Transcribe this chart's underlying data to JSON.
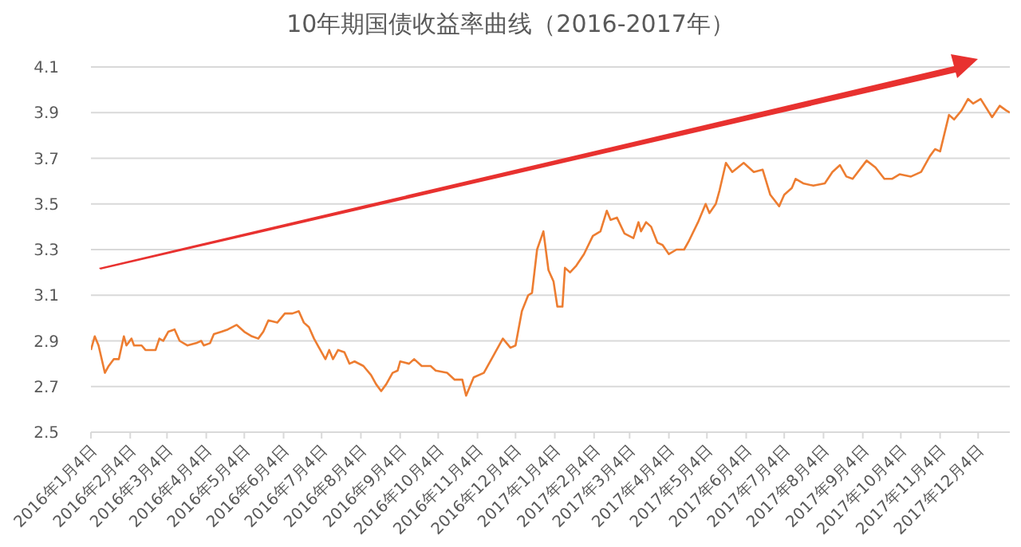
{
  "chart_data": {
    "type": "line",
    "title": "10年期国债收益率曲线（2016-2017年）",
    "x": [
      "2016-01-04",
      "2016-01-07",
      "2016-01-10",
      "2016-01-15",
      "2016-01-18",
      "2016-01-22",
      "2016-01-26",
      "2016-01-30",
      "2016-02-01",
      "2016-02-05",
      "2016-02-07",
      "2016-02-13",
      "2016-02-16",
      "2016-02-24",
      "2016-02-27",
      "2016-03-01",
      "2016-03-05",
      "2016-03-10",
      "2016-03-14",
      "2016-03-20",
      "2016-03-27",
      "2016-03-31",
      "2016-04-02",
      "2016-04-07",
      "2016-04-10",
      "2016-04-16",
      "2016-04-21",
      "2016-04-28",
      "2016-05-04",
      "2016-05-10",
      "2016-05-15",
      "2016-05-19",
      "2016-05-23",
      "2016-05-30",
      "2016-06-05",
      "2016-06-11",
      "2016-06-16",
      "2016-06-20",
      "2016-06-24",
      "2016-06-28",
      "2016-07-02",
      "2016-07-07",
      "2016-07-10",
      "2016-07-13",
      "2016-07-17",
      "2016-07-22",
      "2016-07-26",
      "2016-07-30",
      "2016-08-06",
      "2016-08-12",
      "2016-08-16",
      "2016-08-20",
      "2016-08-24",
      "2016-08-29",
      "2016-09-02",
      "2016-09-04",
      "2016-09-11",
      "2016-09-15",
      "2016-09-21",
      "2016-09-28",
      "2016-10-02",
      "2016-10-11",
      "2016-10-17",
      "2016-10-23",
      "2016-10-26",
      "2016-11-01",
      "2016-11-09",
      "2016-11-16",
      "2016-11-24",
      "2016-11-30",
      "2016-12-04",
      "2016-12-09",
      "2016-12-14",
      "2016-12-17",
      "2016-12-21",
      "2016-12-26",
      "2016-12-30",
      "2017-01-03",
      "2017-01-06",
      "2017-01-10",
      "2017-01-12",
      "2017-01-16",
      "2017-01-21",
      "2017-01-27",
      "2017-02-03",
      "2017-02-09",
      "2017-02-14",
      "2017-02-17",
      "2017-02-22",
      "2017-02-28",
      "2017-03-07",
      "2017-03-11",
      "2017-03-13",
      "2017-03-17",
      "2017-03-21",
      "2017-03-26",
      "2017-03-30",
      "2017-04-04",
      "2017-04-10",
      "2017-04-16",
      "2017-04-20",
      "2017-04-27",
      "2017-05-03",
      "2017-05-06",
      "2017-05-11",
      "2017-05-14",
      "2017-05-19",
      "2017-05-24",
      "2017-06-02",
      "2017-06-10",
      "2017-06-17",
      "2017-06-23",
      "2017-06-30",
      "2017-07-04",
      "2017-07-10",
      "2017-07-13",
      "2017-07-19",
      "2017-07-27",
      "2017-08-05",
      "2017-08-11",
      "2017-08-17",
      "2017-08-22",
      "2017-08-27",
      "2017-09-07",
      "2017-09-14",
      "2017-09-21",
      "2017-09-27",
      "2017-10-03",
      "2017-10-12",
      "2017-10-20",
      "2017-10-27",
      "2017-10-31",
      "2017-11-04",
      "2017-11-11",
      "2017-11-15",
      "2017-11-21",
      "2017-11-26",
      "2017-11-30",
      "2017-12-06",
      "2017-12-15",
      "2017-12-21",
      "2017-12-26",
      "2017-12-29"
    ],
    "series": [
      {
        "color": "#ed7d31",
        "values": [
          2.86,
          2.92,
          2.88,
          2.76,
          2.79,
          2.82,
          2.82,
          2.92,
          2.88,
          2.91,
          2.88,
          2.88,
          2.86,
          2.86,
          2.91,
          2.9,
          2.94,
          2.95,
          2.9,
          2.88,
          2.89,
          2.9,
          2.88,
          2.89,
          2.93,
          2.94,
          2.95,
          2.97,
          2.94,
          2.92,
          2.91,
          2.94,
          2.99,
          2.98,
          3.02,
          3.02,
          3.03,
          2.98,
          2.96,
          2.91,
          2.87,
          2.82,
          2.86,
          2.82,
          2.86,
          2.85,
          2.8,
          2.81,
          2.79,
          2.75,
          2.71,
          2.68,
          2.71,
          2.76,
          2.77,
          2.81,
          2.8,
          2.82,
          2.79,
          2.79,
          2.77,
          2.76,
          2.73,
          2.73,
          2.66,
          2.74,
          2.76,
          2.83,
          2.91,
          2.87,
          2.88,
          3.03,
          3.1,
          3.11,
          3.3,
          3.38,
          3.21,
          3.16,
          3.05,
          3.05,
          3.22,
          3.2,
          3.23,
          3.28,
          3.36,
          3.38,
          3.47,
          3.43,
          3.44,
          3.37,
          3.35,
          3.42,
          3.38,
          3.42,
          3.4,
          3.33,
          3.32,
          3.28,
          3.3,
          3.3,
          3.34,
          3.42,
          3.5,
          3.46,
          3.5,
          3.56,
          3.68,
          3.64,
          3.68,
          3.64,
          3.65,
          3.54,
          3.49,
          3.54,
          3.57,
          3.61,
          3.59,
          3.58,
          3.59,
          3.64,
          3.67,
          3.62,
          3.61,
          3.69,
          3.66,
          3.61,
          3.61,
          3.63,
          3.62,
          3.64,
          3.71,
          3.74,
          3.73,
          3.89,
          3.87,
          3.91,
          3.96,
          3.94,
          3.96,
          3.88,
          3.93,
          3.91,
          3.9
        ]
      }
    ],
    "xlim": [
      "2016-01-04",
      "2017-12-29"
    ],
    "xticks": [
      {
        "value": "2016-01-04",
        "label": "2016年1月4日"
      },
      {
        "value": "2016-02-04",
        "label": "2016年2月4日"
      },
      {
        "value": "2016-03-04",
        "label": "2016年3月4日"
      },
      {
        "value": "2016-04-04",
        "label": "2016年4月4日"
      },
      {
        "value": "2016-05-04",
        "label": "2016年5月4日"
      },
      {
        "value": "2016-06-04",
        "label": "2016年6月4日"
      },
      {
        "value": "2016-07-04",
        "label": "2016年7月4日"
      },
      {
        "value": "2016-08-04",
        "label": "2016年8月4日"
      },
      {
        "value": "2016-09-04",
        "label": "2016年9月4日"
      },
      {
        "value": "2016-10-04",
        "label": "2016年10月4日"
      },
      {
        "value": "2016-11-04",
        "label": "2016年11月4日"
      },
      {
        "value": "2016-12-04",
        "label": "2016年12月4日"
      },
      {
        "value": "2017-01-04",
        "label": "2017年1月4日"
      },
      {
        "value": "2017-02-04",
        "label": "2017年2月4日"
      },
      {
        "value": "2017-03-04",
        "label": "2017年3月4日"
      },
      {
        "value": "2017-04-04",
        "label": "2017年4月4日"
      },
      {
        "value": "2017-05-04",
        "label": "2017年5月4日"
      },
      {
        "value": "2017-06-04",
        "label": "2017年6月4日"
      },
      {
        "value": "2017-07-04",
        "label": "2017年7月4日"
      },
      {
        "value": "2017-08-04",
        "label": "2017年8月4日"
      },
      {
        "value": "2017-09-04",
        "label": "2017年9月4日"
      },
      {
        "value": "2017-10-04",
        "label": "2017年10月4日"
      },
      {
        "value": "2017-11-04",
        "label": "2017年11月4日"
      },
      {
        "value": "2017-12-04",
        "label": "2017年12月4日"
      }
    ],
    "ylim": [
      2.5,
      4.1
    ],
    "yticks": [
      2.5,
      2.7,
      2.9,
      3.1,
      3.3,
      3.5,
      3.7,
      3.9,
      4.1
    ],
    "grid": "y",
    "marker": "none",
    "line_style": "solid"
  }
}
